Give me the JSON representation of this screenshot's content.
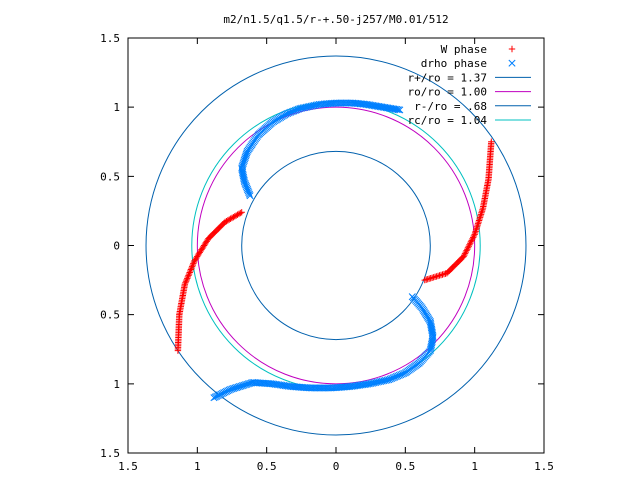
{
  "chart_data": {
    "type": "scatter",
    "title": "m2/n1.5/q1.5/r-+.50-j257/M0.01/512",
    "xlim": [
      -1.5,
      1.5
    ],
    "ylim": [
      -1.5,
      1.5
    ],
    "x_ticks": [
      {
        "value": -1.5,
        "label": "1.5"
      },
      {
        "value": -1.0,
        "label": "1"
      },
      {
        "value": -0.5,
        "label": "0.5"
      },
      {
        "value": 0.0,
        "label": "0"
      },
      {
        "value": 0.5,
        "label": "0.5"
      },
      {
        "value": 1.0,
        "label": "1"
      },
      {
        "value": 1.5,
        "label": "1.5"
      }
    ],
    "y_ticks": [
      {
        "value": 1.5,
        "label": "1.5"
      },
      {
        "value": 1.0,
        "label": "1"
      },
      {
        "value": 0.5,
        "label": "0.5"
      },
      {
        "value": 0.0,
        "label": "0"
      },
      {
        "value": -0.5,
        "label": "0.5"
      },
      {
        "value": -1.0,
        "label": "1"
      },
      {
        "value": -1.5,
        "label": "1.5"
      }
    ],
    "grid": false,
    "legend_position": "top-right",
    "series": [
      {
        "name": "W phase",
        "kind": "points",
        "marker": "plus",
        "color": "#ff0000",
        "x": [
          -0.68,
          -0.8,
          -0.92,
          -1.02,
          -1.09,
          -1.13,
          -1.14
        ],
        "y": [
          0.24,
          0.17,
          0.05,
          -0.11,
          -0.28,
          -0.5,
          -0.76
        ]
      },
      {
        "name": "W phase",
        "kind": "points",
        "marker": "plus",
        "color": "#ff0000",
        "x": [
          0.64,
          0.8,
          0.92,
          1.0,
          1.06,
          1.1,
          1.12
        ],
        "y": [
          -0.25,
          -0.2,
          -0.08,
          0.08,
          0.27,
          0.48,
          0.75
        ]
      },
      {
        "name": "drho phase",
        "kind": "points",
        "marker": "cross",
        "color": "#0080ff",
        "x": [
          -0.62,
          -0.66,
          -0.68,
          -0.64,
          -0.56,
          -0.46,
          -0.36,
          -0.26,
          -0.12,
          0.0,
          0.12,
          0.22,
          0.34,
          0.46
        ],
        "y": [
          0.36,
          0.46,
          0.56,
          0.68,
          0.8,
          0.89,
          0.95,
          0.99,
          1.02,
          1.03,
          1.03,
          1.02,
          1.0,
          0.98
        ]
      },
      {
        "name": "drho phase",
        "kind": "points",
        "marker": "cross",
        "color": "#0080ff",
        "x": [
          0.55,
          0.62,
          0.68,
          0.7,
          0.68,
          0.6,
          0.5,
          0.38,
          0.24,
          0.1,
          -0.04,
          -0.18,
          -0.32,
          -0.46,
          -0.6,
          -0.76,
          -0.88
        ],
        "y": [
          -0.37,
          -0.45,
          -0.55,
          -0.66,
          -0.76,
          -0.85,
          -0.92,
          -0.97,
          -1.0,
          -1.02,
          -1.03,
          -1.03,
          -1.02,
          -1.0,
          -0.99,
          -1.04,
          -1.1
        ]
      },
      {
        "name": "r+/ro = 1.37",
        "kind": "circle",
        "radius": 1.37,
        "color": "#0060ad"
      },
      {
        "name": "ro/ro = 1.00",
        "kind": "circle",
        "radius": 1.0,
        "color": "#c000c0"
      },
      {
        "name": "r-/ro = .68",
        "kind": "circle",
        "radius": 0.68,
        "color": "#0060ad"
      },
      {
        "name": "rc/ro = 1.04",
        "kind": "circle",
        "radius": 1.04,
        "color": "#00c0c0"
      }
    ]
  }
}
